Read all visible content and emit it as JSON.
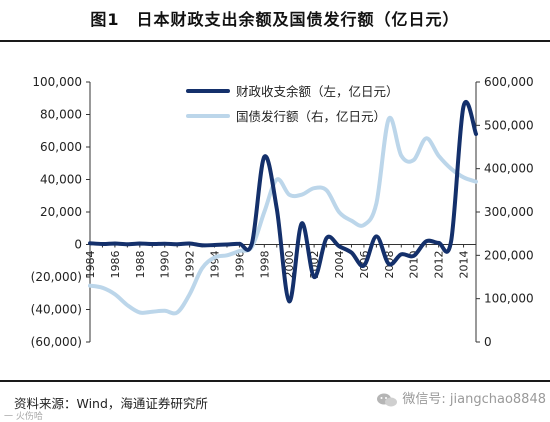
{
  "figure": {
    "title": "图1　日本财政支出余额及国债发行额（亿日元）",
    "source": "资料来源：Wind，海通证券研究所",
    "watermark": "微信号: jiangchao8848",
    "corner_mark": "一 火伤哈"
  },
  "colors": {
    "series_dark": "#14306b",
    "series_light": "#bcd6ea",
    "axis": "#333333",
    "frame": "#1a1a1a"
  },
  "chart_data": {
    "type": "line",
    "title": "",
    "x": [
      1984,
      1985,
      1986,
      1987,
      1988,
      1989,
      1990,
      1991,
      1992,
      1993,
      1994,
      1995,
      1996,
      1997,
      1998,
      1999,
      2000,
      2001,
      2002,
      2003,
      2004,
      2005,
      2006,
      2007,
      2008,
      2009,
      2010,
      2011,
      2012,
      2013,
      2014,
      2015
    ],
    "x_ticks": [
      "1984",
      "1986",
      "1988",
      "1990",
      "1992",
      "1994",
      "1996",
      "1998",
      "2000",
      "2002",
      "2004",
      "2006",
      "2008",
      "2010",
      "2012",
      "2014"
    ],
    "left_axis": {
      "range": [
        -60000,
        100000
      ],
      "ticks": [
        -60000,
        -40000,
        -20000,
        0,
        20000,
        40000,
        60000,
        80000,
        100000
      ],
      "tick_labels": [
        "(60,000)",
        "(40,000)",
        "(20,000)",
        "0",
        "20,000",
        "40,000",
        "60,000",
        "80,000",
        "100,000"
      ]
    },
    "right_axis": {
      "range": [
        0,
        600000
      ],
      "ticks": [
        0,
        100000,
        200000,
        300000,
        400000,
        500000,
        600000
      ],
      "tick_labels": [
        "0",
        "100,000",
        "200,000",
        "300,000",
        "400,000",
        "500,000",
        "600,000"
      ]
    },
    "series": [
      {
        "name": "财政收支余额（左，亿日元）",
        "axis": "left",
        "values": [
          800,
          300,
          600,
          200,
          600,
          300,
          500,
          200,
          600,
          -500,
          -300,
          0,
          500,
          600,
          54000,
          22000,
          -35000,
          13000,
          -20000,
          4000,
          -1000,
          -5000,
          -13000,
          5000,
          -12000,
          -6000,
          -7000,
          2000,
          1000,
          2000,
          85000,
          68000
        ]
      },
      {
        "name": "国债发行额（右，亿日元）",
        "axis": "right",
        "values": [
          130000,
          125000,
          110000,
          85000,
          68000,
          70000,
          72000,
          68000,
          110000,
          170000,
          195000,
          200000,
          210000,
          220000,
          300000,
          375000,
          340000,
          340000,
          355000,
          350000,
          300000,
          280000,
          270000,
          320000,
          515000,
          430000,
          420000,
          470000,
          430000,
          400000,
          380000,
          370000
        ]
      }
    ],
    "legend": "top-center",
    "grid": false
  }
}
